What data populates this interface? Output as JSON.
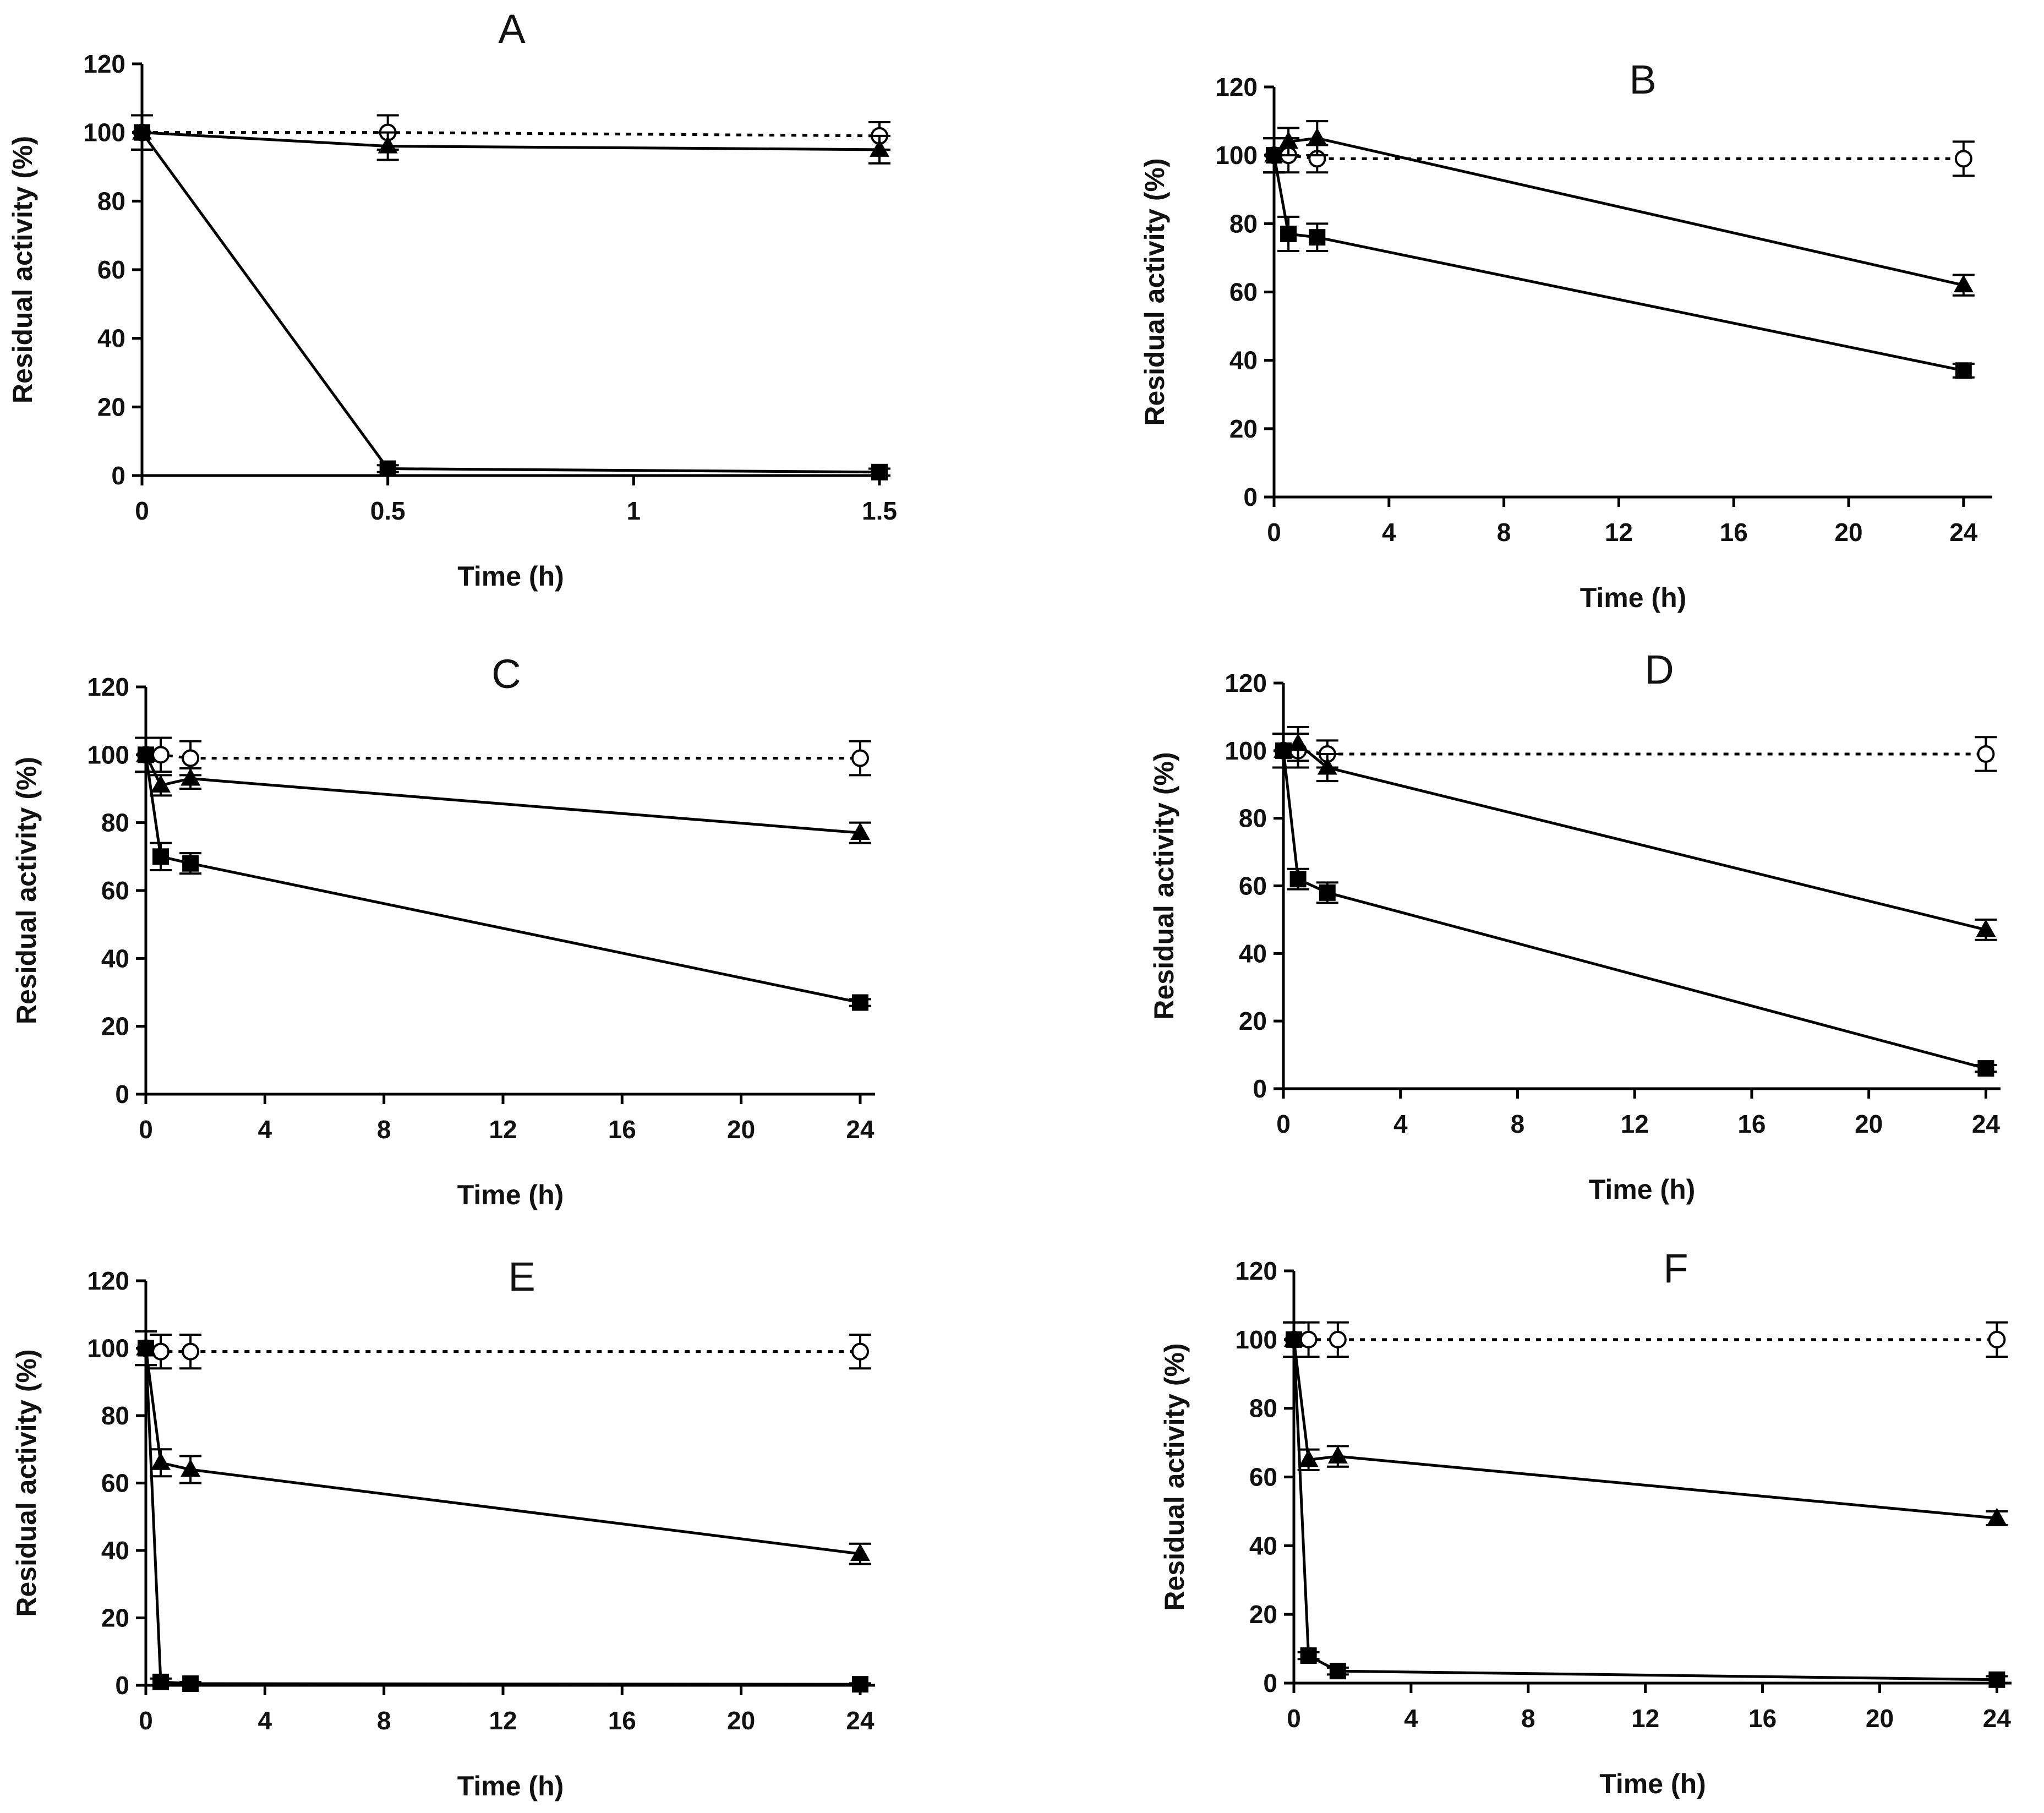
{
  "chart_data": [
    {
      "type": "line",
      "title": "A",
      "xlabel": "Time (h)",
      "ylabel": "Residual activity (%)",
      "xlim": [
        0,
        1.5
      ],
      "ylim": [
        0,
        120
      ],
      "xticks": [
        0,
        0.5,
        1,
        1.5
      ],
      "yticks": [
        0,
        20,
        40,
        60,
        80,
        100,
        120
      ],
      "xtick_labels": [
        "0",
        "0.5",
        "1",
        "1.5"
      ],
      "ytick_labels": [
        "0",
        "20",
        "40",
        "60",
        "80",
        "100",
        "120"
      ],
      "series": [
        {
          "marker": "open-circle",
          "line": "dotted",
          "x": [
            0,
            0.5,
            1.5
          ],
          "y": [
            100,
            100,
            99
          ],
          "err": [
            5,
            5,
            4
          ]
        },
        {
          "marker": "filled-triangle",
          "line": "solid",
          "x": [
            0,
            0.5,
            1.5
          ],
          "y": [
            100,
            96,
            95
          ],
          "err": [
            5,
            4,
            4
          ]
        },
        {
          "marker": "filled-square",
          "line": "solid",
          "x": [
            0,
            0.5,
            1.5
          ],
          "y": [
            100,
            2,
            1
          ],
          "err": [
            5,
            1,
            1
          ]
        }
      ]
    },
    {
      "type": "line",
      "title": "B",
      "xlabel": "Time (h)",
      "ylabel": "Residual activity (%)",
      "xlim": [
        0,
        25
      ],
      "ylim": [
        0,
        120
      ],
      "xticks": [
        0,
        4,
        8,
        12,
        16,
        20,
        24
      ],
      "yticks": [
        0,
        20,
        40,
        60,
        80,
        100,
        120
      ],
      "xtick_labels": [
        "0",
        "4",
        "8",
        "12",
        "16",
        "20",
        "24"
      ],
      "ytick_labels": [
        "0",
        "20",
        "40",
        "60",
        "80",
        "100",
        "120"
      ],
      "series": [
        {
          "marker": "open-circle",
          "line": "dotted",
          "x": [
            0,
            0.5,
            1.5,
            24
          ],
          "y": [
            100,
            100,
            99,
            99
          ],
          "err": [
            5,
            5,
            4,
            5
          ]
        },
        {
          "marker": "filled-triangle",
          "line": "solid",
          "x": [
            0,
            0.5,
            1.5,
            24
          ],
          "y": [
            100,
            104,
            105,
            62
          ],
          "err": [
            5,
            4,
            5,
            3
          ]
        },
        {
          "marker": "filled-square",
          "line": "solid",
          "x": [
            0,
            0.5,
            1.5,
            24
          ],
          "y": [
            100,
            77,
            76,
            37
          ],
          "err": [
            5,
            5,
            4,
            2
          ]
        }
      ]
    },
    {
      "type": "line",
      "title": "C",
      "xlabel": "Time (h)",
      "ylabel": "Residual activity (%)",
      "xlim": [
        0,
        24.5
      ],
      "ylim": [
        0,
        120
      ],
      "xticks": [
        0,
        4,
        8,
        12,
        16,
        20,
        24
      ],
      "yticks": [
        0,
        20,
        40,
        60,
        80,
        100,
        120
      ],
      "xtick_labels": [
        "0",
        "4",
        "8",
        "12",
        "16",
        "20",
        "24"
      ],
      "ytick_labels": [
        "0",
        "20",
        "40",
        "60",
        "80",
        "100",
        "120"
      ],
      "series": [
        {
          "marker": "open-circle",
          "line": "dotted",
          "x": [
            0,
            0.5,
            1.5,
            24
          ],
          "y": [
            100,
            100,
            99,
            99
          ],
          "err": [
            5,
            5,
            5,
            5
          ]
        },
        {
          "marker": "filled-triangle",
          "line": "solid",
          "x": [
            0,
            0.5,
            1.5,
            24
          ],
          "y": [
            100,
            91,
            93,
            77
          ],
          "err": [
            5,
            3,
            3,
            3
          ]
        },
        {
          "marker": "filled-square",
          "line": "solid",
          "x": [
            0,
            0.5,
            1.5,
            24
          ],
          "y": [
            100,
            70,
            68,
            27
          ],
          "err": [
            5,
            4,
            3,
            1
          ]
        }
      ]
    },
    {
      "type": "line",
      "title": "D",
      "xlabel": "Time (h)",
      "ylabel": "Residual activity (%)",
      "xlim": [
        0,
        24.5
      ],
      "ylim": [
        0,
        120
      ],
      "xticks": [
        0,
        4,
        8,
        12,
        16,
        20,
        24
      ],
      "yticks": [
        0,
        20,
        40,
        60,
        80,
        100,
        120
      ],
      "xtick_labels": [
        "0",
        "4",
        "8",
        "12",
        "16",
        "20",
        "24"
      ],
      "ytick_labels": [
        "0",
        "20",
        "40",
        "60",
        "80",
        "100",
        "120"
      ],
      "series": [
        {
          "marker": "open-circle",
          "line": "dotted",
          "x": [
            0,
            0.5,
            1.5,
            24
          ],
          "y": [
            100,
            100,
            99,
            99
          ],
          "err": [
            5,
            5,
            4,
            5
          ]
        },
        {
          "marker": "filled-triangle",
          "line": "solid",
          "x": [
            0,
            0.5,
            1.5,
            24
          ],
          "y": [
            100,
            102,
            95,
            47
          ],
          "err": [
            5,
            5,
            4,
            3
          ]
        },
        {
          "marker": "filled-square",
          "line": "solid",
          "x": [
            0,
            0.5,
            1.5,
            24
          ],
          "y": [
            100,
            62,
            58,
            6
          ],
          "err": [
            5,
            3,
            3,
            1
          ]
        }
      ]
    },
    {
      "type": "line",
      "title": "E",
      "xlabel": "Time (h)",
      "ylabel": "Residual activity (%)",
      "xlim": [
        0,
        24.5
      ],
      "ylim": [
        0,
        120
      ],
      "xticks": [
        0,
        4,
        8,
        12,
        16,
        20,
        24
      ],
      "yticks": [
        0,
        20,
        40,
        60,
        80,
        100,
        120
      ],
      "xtick_labels": [
        "0",
        "4",
        "8",
        "12",
        "16",
        "20",
        "24"
      ],
      "ytick_labels": [
        "0",
        "20",
        "40",
        "60",
        "80",
        "100",
        "120"
      ],
      "series": [
        {
          "marker": "open-circle",
          "line": "dotted",
          "x": [
            0,
            0.5,
            1.5,
            24
          ],
          "y": [
            100,
            99,
            99,
            99
          ],
          "err": [
            5,
            5,
            5,
            5
          ]
        },
        {
          "marker": "filled-triangle",
          "line": "solid",
          "x": [
            0,
            0.5,
            1.5,
            24
          ],
          "y": [
            100,
            66,
            64,
            39
          ],
          "err": [
            5,
            4,
            4,
            3
          ]
        },
        {
          "marker": "filled-square",
          "line": "solid",
          "x": [
            0,
            0.5,
            1.5,
            24
          ],
          "y": [
            100,
            1,
            0.5,
            0.3
          ],
          "err": [
            5,
            1,
            0.5,
            0.3
          ]
        }
      ]
    },
    {
      "type": "line",
      "title": "F",
      "xlabel": "Time (h)",
      "ylabel": "Residual activity (%)",
      "xlim": [
        0,
        24.5
      ],
      "ylim": [
        0,
        120
      ],
      "xticks": [
        0,
        4,
        8,
        12,
        16,
        20,
        24
      ],
      "yticks": [
        0,
        20,
        40,
        60,
        80,
        100,
        120
      ],
      "xtick_labels": [
        "0",
        "4",
        "8",
        "12",
        "16",
        "20",
        "24"
      ],
      "ytick_labels": [
        "0",
        "20",
        "40",
        "60",
        "80",
        "100",
        "120"
      ],
      "series": [
        {
          "marker": "open-circle",
          "line": "dotted",
          "x": [
            0,
            0.5,
            1.5,
            24
          ],
          "y": [
            100,
            100,
            100,
            100
          ],
          "err": [
            5,
            5,
            5,
            5
          ]
        },
        {
          "marker": "filled-triangle",
          "line": "solid",
          "x": [
            0,
            0.5,
            1.5,
            24
          ],
          "y": [
            100,
            65,
            66,
            48
          ],
          "err": [
            5,
            3,
            3,
            2
          ]
        },
        {
          "marker": "filled-square",
          "line": "solid",
          "x": [
            0,
            0.5,
            1.5,
            24
          ],
          "y": [
            100,
            8,
            3.5,
            1
          ],
          "err": [
            5,
            1,
            1,
            1
          ]
        }
      ]
    }
  ]
}
